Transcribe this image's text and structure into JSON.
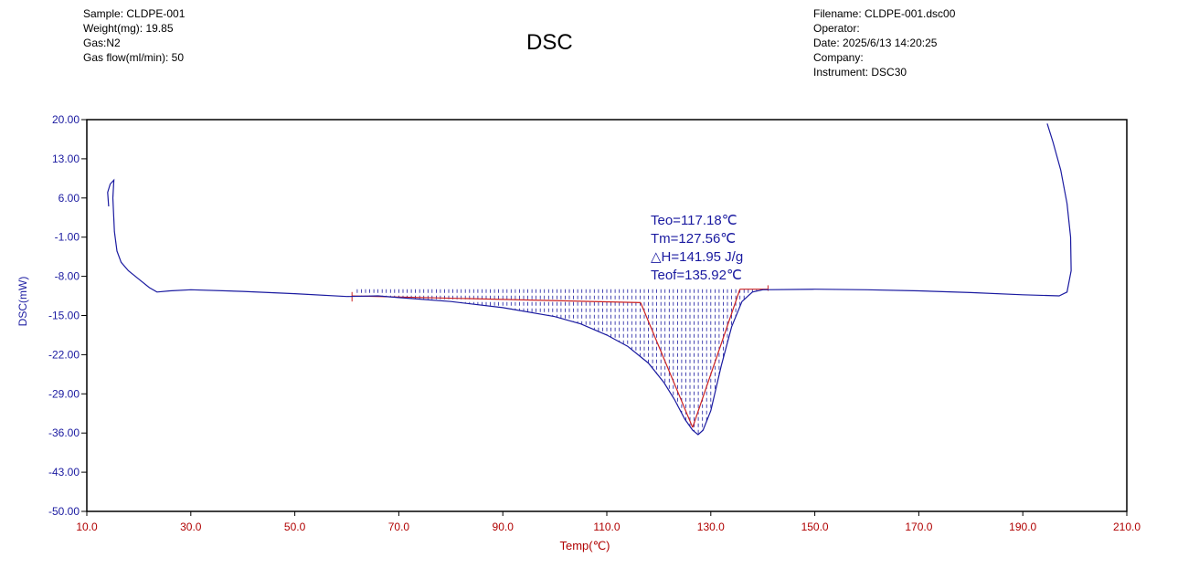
{
  "header": {
    "title": "DSC",
    "left": {
      "sample": "Sample: CLDPE-001",
      "weight": "Weight(mg): 19.85",
      "gas": "Gas:N2",
      "gas_flow": "Gas flow(ml/min): 50"
    },
    "right": {
      "filename": "Filename: CLDPE-001.dsc00",
      "operator": "Operator:",
      "date": "Date: 2025/6/13 14:20:25",
      "company": "Company:",
      "instrument": "Instrument: DSC30"
    }
  },
  "colors": {
    "curve": "#1a1aa0",
    "axis_text_y": "#1a1aa0",
    "axis_text_x": "#b00000",
    "baseline": "#cc2222",
    "hatch": "#1a1aa0"
  },
  "chart_data": {
    "type": "line",
    "title": "DSC",
    "xlabel": "Temp(℃)",
    "ylabel": "DSC(mW)",
    "xlim": [
      10.0,
      210.0
    ],
    "ylim": [
      -50.0,
      20.0
    ],
    "x_ticks": [
      "10.0",
      "30.0",
      "50.0",
      "70.0",
      "90.0",
      "110.0",
      "130.0",
      "150.0",
      "170.0",
      "190.0",
      "210.0"
    ],
    "y_ticks": [
      "20.00",
      "13.00",
      "6.00",
      "-1.00",
      "-8.00",
      "-15.00",
      "-22.00",
      "-29.00",
      "-36.00",
      "-43.00",
      "-50.00"
    ],
    "grid": false,
    "series": [
      {
        "points": [
          [
            14.2,
            4.5
          ],
          [
            14.0,
            7.0
          ],
          [
            14.5,
            8.5
          ],
          [
            15.2,
            9.2
          ],
          [
            15.0,
            6.0
          ],
          [
            15.3,
            0.0
          ],
          [
            15.8,
            -3.5
          ],
          [
            16.6,
            -5.5
          ],
          [
            18.0,
            -7.0
          ],
          [
            20.0,
            -8.5
          ],
          [
            22.0,
            -10.0
          ],
          [
            23.5,
            -10.8
          ],
          [
            26.0,
            -10.6
          ],
          [
            30.0,
            -10.4
          ],
          [
            40.0,
            -10.7
          ],
          [
            50.0,
            -11.1
          ],
          [
            60.0,
            -11.6
          ],
          [
            66.0,
            -11.5
          ],
          [
            70.0,
            -11.8
          ],
          [
            80.0,
            -12.5
          ],
          [
            90.0,
            -13.6
          ],
          [
            100.0,
            -15.2
          ],
          [
            105.0,
            -16.5
          ],
          [
            110.0,
            -18.5
          ],
          [
            114.0,
            -20.5
          ],
          [
            118.0,
            -23.5
          ],
          [
            121.0,
            -27.0
          ],
          [
            123.0,
            -30.0
          ],
          [
            125.0,
            -33.5
          ],
          [
            126.5,
            -35.5
          ],
          [
            127.56,
            -36.3
          ],
          [
            128.5,
            -35.5
          ],
          [
            130.0,
            -32.0
          ],
          [
            132.0,
            -24.0
          ],
          [
            134.0,
            -17.0
          ],
          [
            136.0,
            -12.5
          ],
          [
            138.0,
            -10.8
          ],
          [
            140.0,
            -10.4
          ],
          [
            150.0,
            -10.3
          ],
          [
            160.0,
            -10.4
          ],
          [
            170.0,
            -10.6
          ],
          [
            180.0,
            -10.9
          ],
          [
            190.0,
            -11.3
          ],
          [
            197.0,
            -11.5
          ],
          [
            198.5,
            -10.8
          ],
          [
            199.3,
            -7.0
          ],
          [
            199.2,
            -1.0
          ],
          [
            198.5,
            5.0
          ],
          [
            197.3,
            11.0
          ],
          [
            195.8,
            16.0
          ],
          [
            194.7,
            19.3
          ]
        ]
      }
    ],
    "baseline_segments": [
      [
        [
          61.0,
          -11.5
        ],
        [
          116.5,
          -12.7
        ]
      ],
      [
        [
          116.5,
          -12.7
        ],
        [
          126.5,
          -35.0
        ]
      ],
      [
        [
          126.5,
          -35.0
        ],
        [
          135.6,
          -10.3
        ]
      ],
      [
        [
          135.6,
          -10.3
        ],
        [
          141.0,
          -10.3
        ]
      ]
    ],
    "integration": {
      "x_start": 62.0,
      "x_end": 141.0,
      "y_top": -10.3
    },
    "annotations": [
      "Teo=117.18℃",
      "Tm=127.56℃",
      "△H=141.95 J/g",
      "Teof=135.92℃"
    ]
  }
}
